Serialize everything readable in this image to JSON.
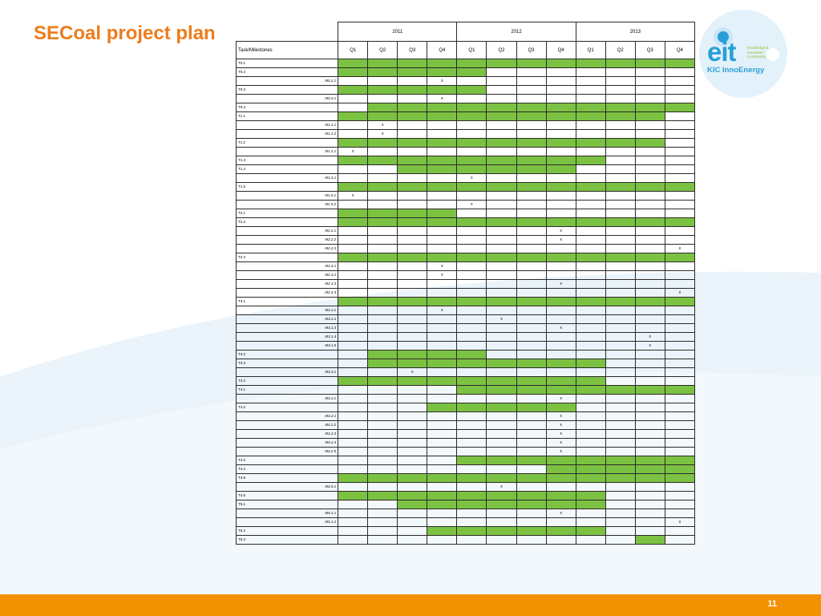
{
  "slide": {
    "title": "SECoal project plan",
    "page_number": "11",
    "accent_color": "#ed7d1c",
    "footer_color": "#f39200",
    "bar_color": "#7cc242"
  },
  "logo": {
    "mark": "eit",
    "tagline": [
      "Knowledge &",
      "Innovation",
      "Community"
    ],
    "name": "KIC InnoEnergy"
  },
  "table": {
    "task_header": "Task/Milestones",
    "years": [
      "2011",
      "2012",
      "2013"
    ],
    "quarters": [
      "Q1",
      "Q2",
      "Q3",
      "Q4",
      "Q1",
      "Q2",
      "Q3",
      "Q4",
      "Q1",
      "Q2",
      "Q3",
      "Q4"
    ],
    "rows": [
      {
        "label": "T0.1",
        "kind": "task",
        "bars": [
          0,
          1,
          2,
          3,
          4,
          5,
          6,
          7,
          8,
          9,
          10,
          11
        ],
        "marks": []
      },
      {
        "label": "T0.2",
        "kind": "task",
        "bars": [
          0,
          1,
          2,
          3,
          4
        ],
        "marks": []
      },
      {
        "label": "M0.2.1",
        "kind": "milestone",
        "bars": [],
        "marks": [
          3
        ]
      },
      {
        "label": "T0.3",
        "kind": "task",
        "bars": [
          0,
          1,
          2,
          3,
          4
        ],
        "marks": []
      },
      {
        "label": "M0.3.1",
        "kind": "milestone",
        "bars": [],
        "marks": [
          3
        ]
      },
      {
        "label": "T0.4",
        "kind": "task",
        "bars": [
          1,
          2,
          3,
          4,
          5,
          6,
          7,
          8,
          9,
          10,
          11
        ],
        "marks": []
      },
      {
        "label": "T1.1",
        "kind": "task",
        "bars": [
          0,
          1,
          2,
          3,
          4,
          5,
          6,
          7,
          8,
          9,
          10
        ],
        "marks": []
      },
      {
        "label": "M1.1.1",
        "kind": "milestone",
        "bars": [],
        "marks": [
          1
        ]
      },
      {
        "label": "M1.1.2",
        "kind": "milestone",
        "bars": [],
        "marks": [
          1
        ]
      },
      {
        "label": "T1.2",
        "kind": "task",
        "bars": [
          0,
          1,
          2,
          3,
          4,
          5,
          6,
          7,
          8,
          9,
          10
        ],
        "marks": []
      },
      {
        "label": "M1.2.1",
        "kind": "milestone",
        "bars": [],
        "marks": [
          0
        ]
      },
      {
        "label": "T1.3",
        "kind": "task",
        "bars": [
          0,
          1,
          2,
          3,
          4,
          5,
          6,
          7,
          8
        ],
        "marks": []
      },
      {
        "label": "T1.4",
        "kind": "task",
        "bars": [
          2,
          3,
          4,
          5,
          6,
          7
        ],
        "marks": []
      },
      {
        "label": "M1.4.1",
        "kind": "milestone",
        "bars": [],
        "marks": [
          4
        ]
      },
      {
        "label": "T1.5",
        "kind": "task",
        "bars": [
          0,
          1,
          2,
          3,
          4,
          5,
          6,
          7,
          8,
          9,
          10,
          11
        ],
        "marks": []
      },
      {
        "label": "M1.5.1",
        "kind": "milestone",
        "bars": [],
        "marks": [
          0
        ]
      },
      {
        "label": "M1.5.2",
        "kind": "milestone",
        "bars": [],
        "marks": [
          4
        ]
      },
      {
        "label": "T2.1",
        "kind": "task",
        "bars": [
          0,
          1,
          2,
          3
        ],
        "marks": []
      },
      {
        "label": "T2.2",
        "kind": "task",
        "bars": [
          0,
          1,
          2,
          3,
          4,
          5,
          6,
          7,
          8,
          9,
          10,
          11
        ],
        "marks": []
      },
      {
        "label": "M2.2.1",
        "kind": "milestone",
        "bars": [],
        "marks": [
          7
        ]
      },
      {
        "label": "M2.2.2",
        "kind": "milestone",
        "bars": [],
        "marks": [
          7
        ]
      },
      {
        "label": "M2.2.3",
        "kind": "milestone",
        "bars": [],
        "marks": [
          11
        ]
      },
      {
        "label": "T2.3",
        "kind": "task",
        "bars": [
          0,
          1,
          2,
          3,
          4,
          5,
          6,
          7,
          8,
          9,
          10,
          11
        ],
        "marks": []
      },
      {
        "label": "M2.3.1",
        "kind": "milestone",
        "bars": [],
        "marks": [
          3
        ]
      },
      {
        "label": "M2.3.2",
        "kind": "milestone",
        "bars": [],
        "marks": [
          3
        ]
      },
      {
        "label": "M2.3.3",
        "kind": "milestone",
        "bars": [],
        "marks": [
          7
        ]
      },
      {
        "label": "M2.3.4",
        "kind": "milestone",
        "bars": [],
        "marks": [
          11
        ]
      },
      {
        "label": "T3.1",
        "kind": "task",
        "bars": [
          0,
          1,
          2,
          3,
          4,
          5,
          6,
          7,
          8,
          9,
          10,
          11
        ],
        "marks": []
      },
      {
        "label": "M3.1.1",
        "kind": "milestone",
        "bars": [],
        "marks": [
          3
        ]
      },
      {
        "label": "M3.1.2",
        "kind": "milestone",
        "bars": [],
        "marks": [
          5
        ]
      },
      {
        "label": "M3.1.3",
        "kind": "milestone",
        "bars": [],
        "marks": [
          7
        ]
      },
      {
        "label": "M3.1.4",
        "kind": "milestone",
        "bars": [],
        "marks": [
          10
        ]
      },
      {
        "label": "M3.1.5",
        "kind": "milestone",
        "bars": [],
        "marks": [
          10
        ]
      },
      {
        "label": "T3.2",
        "kind": "task",
        "bars": [
          1,
          2,
          3,
          4
        ],
        "marks": []
      },
      {
        "label": "T3.3",
        "kind": "task",
        "bars": [
          1,
          2,
          3,
          4,
          5,
          6,
          7,
          8
        ],
        "marks": []
      },
      {
        "label": "M3.3.1",
        "kind": "milestone",
        "bars": [],
        "marks": [
          2
        ]
      },
      {
        "label": "T3.4",
        "kind": "task",
        "bars": [
          0,
          1,
          2,
          3,
          4,
          5,
          6,
          7,
          8
        ],
        "marks": []
      },
      {
        "label": "T4.1",
        "kind": "task",
        "bars": [
          4,
          5,
          6,
          7,
          8,
          9,
          10,
          11
        ],
        "marks": []
      },
      {
        "label": "M4.1.1",
        "kind": "milestone",
        "bars": [],
        "marks": [
          7
        ]
      },
      {
        "label": "T4.2",
        "kind": "task",
        "bars": [
          3,
          4,
          5,
          6,
          7
        ],
        "marks": []
      },
      {
        "label": "M4.2.1",
        "kind": "milestone",
        "bars": [],
        "marks": [
          7
        ]
      },
      {
        "label": "M4.2.2",
        "kind": "milestone",
        "bars": [],
        "marks": [
          7
        ]
      },
      {
        "label": "M4.2.3",
        "kind": "milestone",
        "bars": [],
        "marks": [
          7
        ]
      },
      {
        "label": "M4.2.4",
        "kind": "milestone",
        "bars": [],
        "marks": [
          7
        ]
      },
      {
        "label": "M4.2.5",
        "kind": "milestone",
        "bars": [],
        "marks": [
          7
        ]
      },
      {
        "label": "T4.3",
        "kind": "task",
        "bars": [
          4,
          5,
          6,
          7,
          8,
          9,
          10,
          11
        ],
        "marks": []
      },
      {
        "label": "T4.4",
        "kind": "task",
        "bars": [
          7,
          8,
          9,
          10,
          11
        ],
        "marks": []
      },
      {
        "label": "T4.5",
        "kind": "task",
        "bars": [
          0,
          1,
          2,
          3,
          4,
          5,
          6,
          7,
          8,
          9,
          10,
          11
        ],
        "marks": []
      },
      {
        "label": "M4.5.1",
        "kind": "milestone",
        "bars": [],
        "marks": [
          5
        ]
      },
      {
        "label": "T4.6",
        "kind": "task",
        "bars": [
          0,
          1,
          2,
          3,
          4,
          5,
          6,
          7,
          8
        ],
        "marks": []
      },
      {
        "label": "T5.1",
        "kind": "task",
        "bars": [
          2,
          3,
          4,
          5,
          6,
          7,
          8
        ],
        "marks": []
      },
      {
        "label": "M5.1.1",
        "kind": "milestone",
        "bars": [],
        "marks": [
          7
        ]
      },
      {
        "label": "M5.1.2",
        "kind": "milestone",
        "bars": [],
        "marks": [
          11
        ]
      },
      {
        "label": "T5.2",
        "kind": "task",
        "bars": [
          3,
          4,
          5,
          6,
          7,
          8
        ],
        "marks": []
      },
      {
        "label": "T5.3",
        "kind": "task",
        "bars": [
          10
        ],
        "marks": []
      }
    ],
    "mark_symbol": "x"
  }
}
